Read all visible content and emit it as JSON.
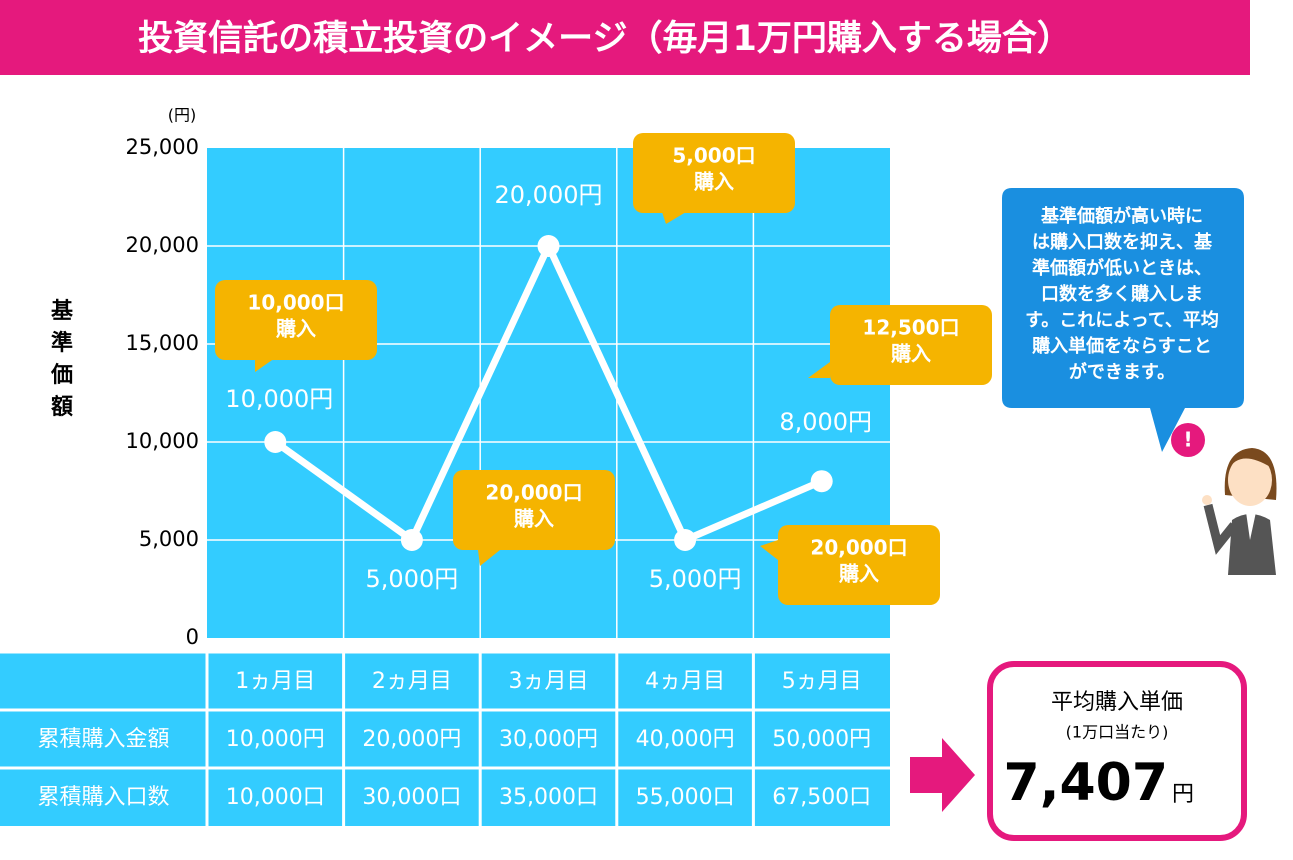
{
  "chart_data": {
    "type": "line",
    "title": "投資信託の積立投資のイメージ（毎月1万円購入する場合）",
    "y_label": "基準価額",
    "y_unit": "(円)",
    "categories": [
      "1ヵ月目",
      "2ヵ月目",
      "3ヵ月目",
      "4ヵ月目",
      "5ヵ月目"
    ],
    "values": [
      10000,
      5000,
      20000,
      5000,
      8000
    ],
    "value_labels": [
      "10,000円",
      "5,000円",
      "20,000円",
      "5,000円",
      "8,000円"
    ],
    "annotations": [
      [
        "10,000口",
        "購入"
      ],
      [
        "20,000口",
        "購入"
      ],
      [
        "5,000口",
        "購入"
      ],
      [
        "20,000口",
        "購入"
      ],
      [
        "12,500口",
        "購入"
      ]
    ],
    "ylim": [
      0,
      25000
    ],
    "yticks": [
      0,
      {
        "value": 5000,
        "label": "5,000"
      },
      {
        "value": 10000,
        "label": "10,000"
      },
      {
        "value": 15000,
        "label": "15,000"
      },
      {
        "value": 20000,
        "label": "20,000"
      },
      {
        "value": 25000,
        "label": "25,000"
      }
    ],
    "grid": true,
    "color": "#ffffff",
    "plot_color": "#33ccff"
  },
  "table": {
    "rows": [
      [
        "累積購入金額",
        "10,000円",
        "20,000円",
        "30,000円",
        "40,000円",
        "50,000円"
      ],
      [
        "累積購入口数",
        "10,000口",
        "30,000口",
        "35,000口",
        "55,000口",
        "67,500口"
      ]
    ]
  },
  "note": [
    "基準価額が高い時に",
    "は購入口数を抑え、基",
    "準価額が低いときは、",
    "口数を多く購入しま",
    "す。これによって、平均",
    "購入単価をならすこと",
    "ができます。"
  ],
  "badge": "!",
  "summary": {
    "title": "平均購入単価",
    "subtitle": "(1万口当たり)",
    "value": "7,407",
    "unit": "円"
  }
}
